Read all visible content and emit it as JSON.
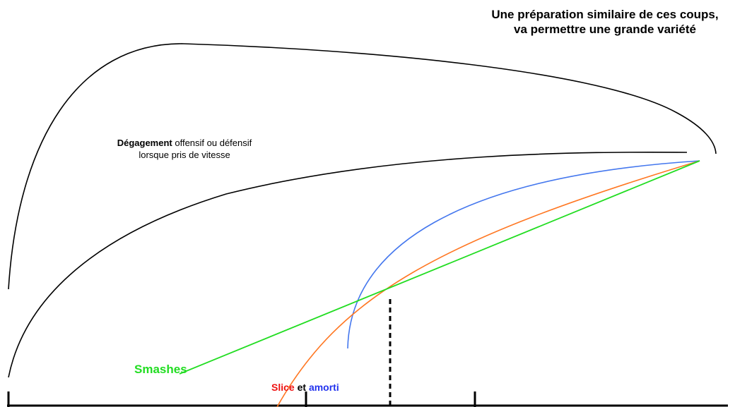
{
  "title": "Une préparation similaire de ces coups,  va permettre une grande variété",
  "clear": {
    "bold": "Dégagement",
    "rest": " offensif ou défensif lorsque pris de vitesse"
  },
  "labels": {
    "smashes": "Smashes",
    "slice": "Slice",
    "et": " et ",
    "amorti": "amorti"
  },
  "colors": {
    "smashes": "#22dd22",
    "slice_curve": "#ff7722",
    "amorti_curve": "#4477ee",
    "clears": "#000000",
    "baseline": "#000000"
  }
}
